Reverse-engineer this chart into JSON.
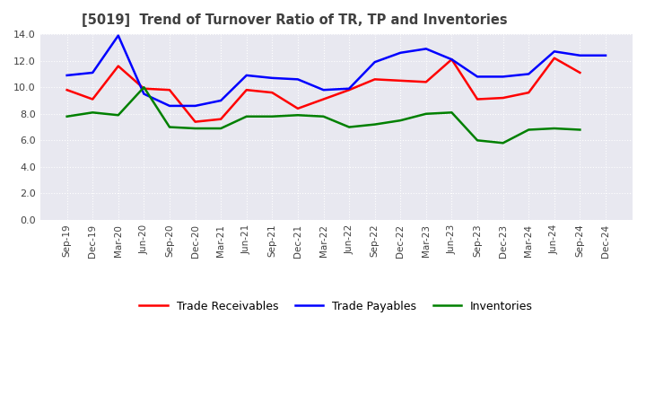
{
  "title": "[5019]  Trend of Turnover Ratio of TR, TP and Inventories",
  "x_labels": [
    "Sep-19",
    "Dec-19",
    "Mar-20",
    "Jun-20",
    "Sep-20",
    "Dec-20",
    "Mar-21",
    "Jun-21",
    "Sep-21",
    "Dec-21",
    "Mar-22",
    "Jun-22",
    "Sep-22",
    "Dec-22",
    "Mar-23",
    "Jun-23",
    "Sep-23",
    "Dec-23",
    "Mar-24",
    "Jun-24",
    "Sep-24",
    "Dec-24"
  ],
  "trade_receivables": [
    9.8,
    9.1,
    11.6,
    9.9,
    9.8,
    7.4,
    7.6,
    9.8,
    9.6,
    8.4,
    9.1,
    9.8,
    10.6,
    10.5,
    10.4,
    12.1,
    9.1,
    9.2,
    9.6,
    12.2,
    11.1,
    null
  ],
  "trade_payables": [
    10.9,
    11.1,
    13.9,
    9.5,
    8.6,
    8.6,
    9.0,
    10.9,
    10.7,
    10.6,
    9.8,
    9.9,
    11.9,
    12.6,
    12.9,
    12.1,
    10.8,
    10.8,
    11.0,
    12.7,
    12.4,
    12.4
  ],
  "inventories": [
    7.8,
    8.1,
    7.9,
    10.0,
    7.0,
    6.9,
    6.9,
    7.8,
    7.8,
    7.9,
    7.8,
    7.0,
    7.2,
    7.5,
    8.0,
    8.1,
    6.0,
    5.8,
    6.8,
    6.9,
    6.8,
    null
  ],
  "ylim": [
    0.0,
    14.0
  ],
  "yticks": [
    0.0,
    2.0,
    4.0,
    6.0,
    8.0,
    10.0,
    12.0,
    14.0
  ],
  "tr_color": "#ff0000",
  "tp_color": "#0000ff",
  "inv_color": "#008000",
  "legend_labels": [
    "Trade Receivables",
    "Trade Payables",
    "Inventories"
  ],
  "bg_color": "#ffffff",
  "plot_bg_color": "#e8e8f0",
  "grid_color": "#ffffff",
  "title_color": "#404040",
  "tick_label_color": "#404040"
}
